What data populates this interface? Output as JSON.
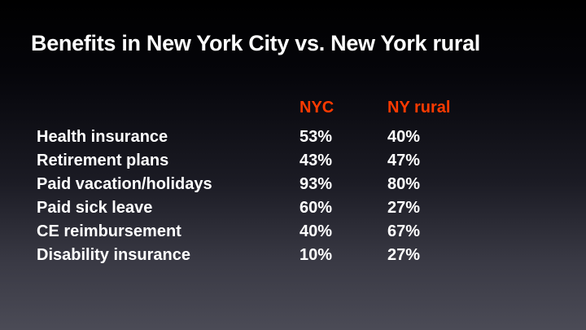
{
  "slide": {
    "title": "Benefits in New York City vs. New York rural",
    "columns": [
      "NYC",
      "NY rural"
    ],
    "rows": [
      {
        "label": "Health insurance",
        "nyc": "53%",
        "rural": "40%"
      },
      {
        "label": "Retirement plans",
        "nyc": "43%",
        "rural": "47%"
      },
      {
        "label": "Paid vacation/holidays",
        "nyc": "93%",
        "rural": "80%"
      },
      {
        "label": "Paid sick leave",
        "nyc": "60%",
        "rural": "27%"
      },
      {
        "label": "CE reimbursement",
        "nyc": "40%",
        "rural": "67%"
      },
      {
        "label": "Disability insurance",
        "nyc": "10%",
        "rural": "27%"
      }
    ]
  },
  "colors": {
    "header": "#ff3a00",
    "text": "#ffffff"
  }
}
